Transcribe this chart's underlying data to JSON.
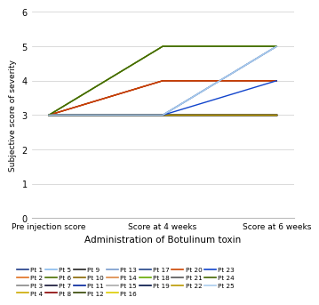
{
  "x_positions": [
    0,
    1,
    2
  ],
  "x_labels": [
    "Pre injection score",
    "Score at 4 weeks",
    "Score at 6 weeks"
  ],
  "xlabel": "Administration of Botulinum toxin",
  "ylabel": "Subjective score of severity",
  "ylim": [
    0,
    6
  ],
  "yticks": [
    0,
    1,
    2,
    3,
    4,
    5,
    6
  ],
  "background_color": "#ffffff",
  "patients": [
    {
      "label": "Pt 1",
      "color": "#1f3c88",
      "data": [
        3,
        3,
        5
      ]
    },
    {
      "label": "Pt 2",
      "color": "#e07020",
      "data": [
        3,
        4,
        4
      ]
    },
    {
      "label": "Pt 3",
      "color": "#888888",
      "data": [
        3,
        3,
        3
      ]
    },
    {
      "label": "Pt 4",
      "color": "#ccaa00",
      "data": [
        3,
        3,
        3
      ]
    },
    {
      "label": "Pt 5",
      "color": "#88bbee",
      "data": [
        3,
        3,
        5
      ]
    },
    {
      "label": "Pt 6",
      "color": "#4a7000",
      "data": [
        3,
        5,
        5
      ]
    },
    {
      "label": "Pt 7",
      "color": "#111133",
      "data": [
        3,
        3,
        3
      ]
    },
    {
      "label": "Pt 8",
      "color": "#880000",
      "data": [
        3,
        4,
        4
      ]
    },
    {
      "label": "Pt 9",
      "color": "#222222",
      "data": [
        3,
        3,
        3
      ]
    },
    {
      "label": "Pt 10",
      "color": "#886600",
      "data": [
        3,
        3,
        3
      ]
    },
    {
      "label": "Pt 11",
      "color": "#002299",
      "data": [
        3,
        3,
        3
      ]
    },
    {
      "label": "Pt 12",
      "color": "#334400",
      "data": [
        3,
        3,
        3
      ]
    },
    {
      "label": "Pt 13",
      "color": "#7799cc",
      "data": [
        3,
        3,
        5
      ]
    },
    {
      "label": "Pt 14",
      "color": "#dd8844",
      "data": [
        3,
        3,
        3
      ]
    },
    {
      "label": "Pt 15",
      "color": "#aaaaaa",
      "data": [
        3,
        3,
        3
      ]
    },
    {
      "label": "Pt 16",
      "color": "#ddcc00",
      "data": [
        3,
        3,
        3
      ]
    },
    {
      "label": "Pt 17",
      "color": "#224488",
      "data": [
        3,
        3,
        3
      ]
    },
    {
      "label": "Pt 18",
      "color": "#66aa00",
      "data": [
        3,
        5,
        5
      ]
    },
    {
      "label": "Pt 19",
      "color": "#001144",
      "data": [
        3,
        3,
        3
      ]
    },
    {
      "label": "Pt 20",
      "color": "#cc4400",
      "data": [
        3,
        4,
        4
      ]
    },
    {
      "label": "Pt 21",
      "color": "#555555",
      "data": [
        3,
        3,
        3
      ]
    },
    {
      "label": "Pt 22",
      "color": "#bb9900",
      "data": [
        3,
        3,
        3
      ]
    },
    {
      "label": "Pt 23",
      "color": "#1144cc",
      "data": [
        3,
        3,
        4
      ]
    },
    {
      "label": "Pt 24",
      "color": "#446600",
      "data": [
        3,
        5,
        5
      ]
    },
    {
      "label": "Pt 25",
      "color": "#aaccee",
      "data": [
        3,
        3,
        5
      ]
    }
  ]
}
